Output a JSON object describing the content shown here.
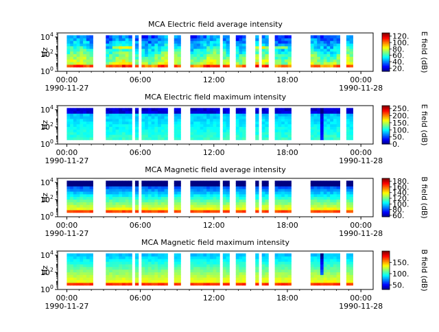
{
  "chart_data": [
    {
      "type": "heatmap",
      "title": "MCA  Electric field average intensity",
      "ylabel": "Hz",
      "yscale": "log",
      "ylim": [
        1,
        30000
      ],
      "y_ticks": [
        {
          "m": "10",
          "e": "0"
        },
        {
          "m": "10",
          "e": "2"
        },
        {
          "m": "10",
          "e": "4"
        }
      ],
      "xlim_hours": [
        -0.75,
        25
      ],
      "x_ticks": [
        {
          "h": 0,
          "label": "00:00",
          "date": "1990-11-27"
        },
        {
          "h": 6,
          "label": "06:00",
          "date": ""
        },
        {
          "h": 12,
          "label": "12:00",
          "date": ""
        },
        {
          "h": 18,
          "label": "18:00",
          "date": ""
        },
        {
          "h": 24,
          "label": "00:00",
          "date": "1990-11-28"
        }
      ],
      "colorbar_label": "E field (dB)",
      "colorbar_range": [
        10,
        130
      ],
      "colorbar_ticks": [
        "20.",
        "40.",
        "60.",
        "80.",
        "100.",
        "120."
      ],
      "colorbar_values": [
        20,
        40,
        60,
        80,
        100,
        120
      ],
      "profile": "eavg",
      "data_gaps_hours": [
        [
          2.1,
          3.3
        ],
        [
          5.3,
          5.5
        ],
        [
          5.95,
          6.2
        ],
        [
          8.3,
          8.85
        ],
        [
          9.25,
          9.95
        ],
        [
          12.55,
          12.75
        ],
        [
          13.35,
          13.9
        ],
        [
          14.65,
          15.3
        ],
        [
          15.7,
          16.0
        ],
        [
          16.4,
          17.0
        ],
        [
          18.3,
          19.8
        ],
        [
          22.2,
          22.7
        ],
        [
          23.4,
          25.0
        ]
      ]
    },
    {
      "type": "heatmap",
      "title": "MCA  Electric field maximum intensity",
      "ylabel": "Hz",
      "yscale": "log",
      "ylim": [
        1,
        30000
      ],
      "y_ticks": [
        {
          "m": "10",
          "e": "0"
        },
        {
          "m": "10",
          "e": "2"
        },
        {
          "m": "10",
          "e": "4"
        }
      ],
      "xlim_hours": [
        -0.75,
        25
      ],
      "x_ticks": [
        {
          "h": 0,
          "label": "00:00",
          "date": "1990-11-27"
        },
        {
          "h": 6,
          "label": "06:00",
          "date": ""
        },
        {
          "h": 12,
          "label": "12:00",
          "date": ""
        },
        {
          "h": 18,
          "label": "18:00",
          "date": ""
        },
        {
          "h": 24,
          "label": "00:00",
          "date": "1990-11-28"
        }
      ],
      "colorbar_label": "E field (dB)",
      "colorbar_range": [
        0,
        270
      ],
      "colorbar_ticks": [
        "0.",
        "50.",
        "100.",
        "150.",
        "200.",
        "250."
      ],
      "colorbar_values": [
        0,
        50,
        100,
        150,
        200,
        250
      ],
      "profile": "emax",
      "data_gaps_hours": [
        [
          2.1,
          3.3
        ],
        [
          5.3,
          5.5
        ],
        [
          5.95,
          6.2
        ],
        [
          8.3,
          8.85
        ],
        [
          9.25,
          9.95
        ],
        [
          12.55,
          12.75
        ],
        [
          13.35,
          13.9
        ],
        [
          14.65,
          15.3
        ],
        [
          15.7,
          16.0
        ],
        [
          16.4,
          17.0
        ],
        [
          18.3,
          19.8
        ],
        [
          22.2,
          22.7
        ],
        [
          23.4,
          25.0
        ]
      ]
    },
    {
      "type": "heatmap",
      "title": "MCA  Magnetic field average intensity",
      "ylabel": "Hz",
      "yscale": "log",
      "ylim": [
        1,
        30000
      ],
      "y_ticks": [
        {
          "m": "10",
          "e": "0"
        },
        {
          "m": "10",
          "e": "2"
        },
        {
          "m": "10",
          "e": "4"
        }
      ],
      "xlim_hours": [
        -0.75,
        25
      ],
      "x_ticks": [
        {
          "h": 0,
          "label": "00:00",
          "date": "1990-11-27"
        },
        {
          "h": 6,
          "label": "06:00",
          "date": ""
        },
        {
          "h": 12,
          "label": "12:00",
          "date": ""
        },
        {
          "h": 18,
          "label": "18:00",
          "date": ""
        },
        {
          "h": 24,
          "label": "00:00",
          "date": "1990-11-28"
        }
      ],
      "colorbar_label": "B field (dB)",
      "colorbar_range": [
        55,
        190
      ],
      "colorbar_ticks": [
        "60.",
        "80.",
        "100.",
        "120.",
        "140.",
        "160.",
        "180."
      ],
      "colorbar_values": [
        60,
        80,
        100,
        120,
        140,
        160,
        180
      ],
      "profile": "bavg",
      "data_gaps_hours": [
        [
          2.1,
          3.3
        ],
        [
          5.3,
          5.5
        ],
        [
          5.95,
          6.2
        ],
        [
          8.3,
          8.85
        ],
        [
          9.25,
          9.95
        ],
        [
          12.55,
          12.75
        ],
        [
          13.35,
          13.9
        ],
        [
          14.65,
          15.3
        ],
        [
          15.7,
          16.0
        ],
        [
          16.4,
          17.0
        ],
        [
          18.3,
          19.8
        ],
        [
          22.2,
          22.7
        ],
        [
          23.4,
          25.0
        ]
      ]
    },
    {
      "type": "heatmap",
      "title": "MCA  Magnetic field maximum intensity",
      "ylabel": "Hz",
      "yscale": "log",
      "ylim": [
        1,
        30000
      ],
      "y_ticks": [
        {
          "m": "10",
          "e": "0"
        },
        {
          "m": "10",
          "e": "2"
        },
        {
          "m": "10",
          "e": "4"
        }
      ],
      "xlim_hours": [
        -0.75,
        25
      ],
      "x_ticks": [
        {
          "h": 0,
          "label": "00:00",
          "date": "1990-11-27"
        },
        {
          "h": 6,
          "label": "06:00",
          "date": ""
        },
        {
          "h": 12,
          "label": "12:00",
          "date": ""
        },
        {
          "h": 18,
          "label": "18:00",
          "date": ""
        },
        {
          "h": 24,
          "label": "00:00",
          "date": "1990-11-28"
        }
      ],
      "colorbar_label": "B field (dB)",
      "colorbar_range": [
        30,
        200
      ],
      "colorbar_ticks": [
        "50.",
        "100.",
        "150."
      ],
      "colorbar_values": [
        50,
        100,
        150
      ],
      "profile": "bmax",
      "data_gaps_hours": [
        [
          2.1,
          3.3
        ],
        [
          5.3,
          5.5
        ],
        [
          5.95,
          6.2
        ],
        [
          8.3,
          8.85
        ],
        [
          9.25,
          9.95
        ],
        [
          12.55,
          12.75
        ],
        [
          13.35,
          13.9
        ],
        [
          14.65,
          15.3
        ],
        [
          15.7,
          16.0
        ],
        [
          16.4,
          17.0
        ],
        [
          18.3,
          19.8
        ],
        [
          22.2,
          22.7
        ],
        [
          23.4,
          25.0
        ]
      ]
    }
  ]
}
